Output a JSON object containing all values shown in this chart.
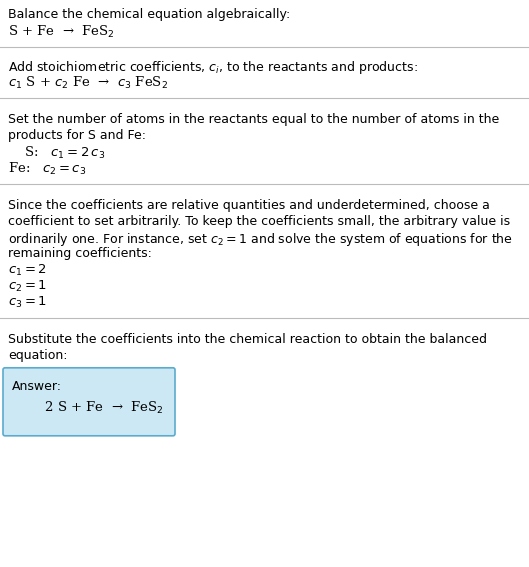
{
  "bg_color": "#ffffff",
  "box_color": "#cce8f4",
  "box_edge_color": "#5aabcc",
  "text_color": "#000000",
  "line_color": "#bbbbbb",
  "title": "Balance the chemical equation algebraically:",
  "eq1": "S + Fe  →  FeS$_2$",
  "eq2_label": "Add stoichiometric coefficients, $c_i$, to the reactants and products:",
  "eq2": "$c_1$ S + $c_2$ Fe  →  $c_3$ FeS$_2$",
  "section3_line1": "Set the number of atoms in the reactants equal to the number of atoms in the",
  "section3_line2": "products for S and Fe:",
  "s_eq": " S:   $c_1 = 2\\,c_3$",
  "fe_eq": "Fe:   $c_2 = c_3$",
  "section4_line1": "Since the coefficients are relative quantities and underdetermined, choose a",
  "section4_line2": "coefficient to set arbitrarily. To keep the coefficients small, the arbitrary value is",
  "section4_line3": "ordinarily one. For instance, set $c_2 = 1$ and solve the system of equations for the",
  "section4_line4": "remaining coefficients:",
  "coeff1": "$c_1 = 2$",
  "coeff2": "$c_2 = 1$",
  "coeff3": "$c_3 = 1$",
  "section5_line1": "Substitute the coefficients into the chemical reaction to obtain the balanced",
  "section5_line2": "equation:",
  "answer_label": "Answer:",
  "answer_eq": "  2 S + Fe  →  FeS$_2$"
}
